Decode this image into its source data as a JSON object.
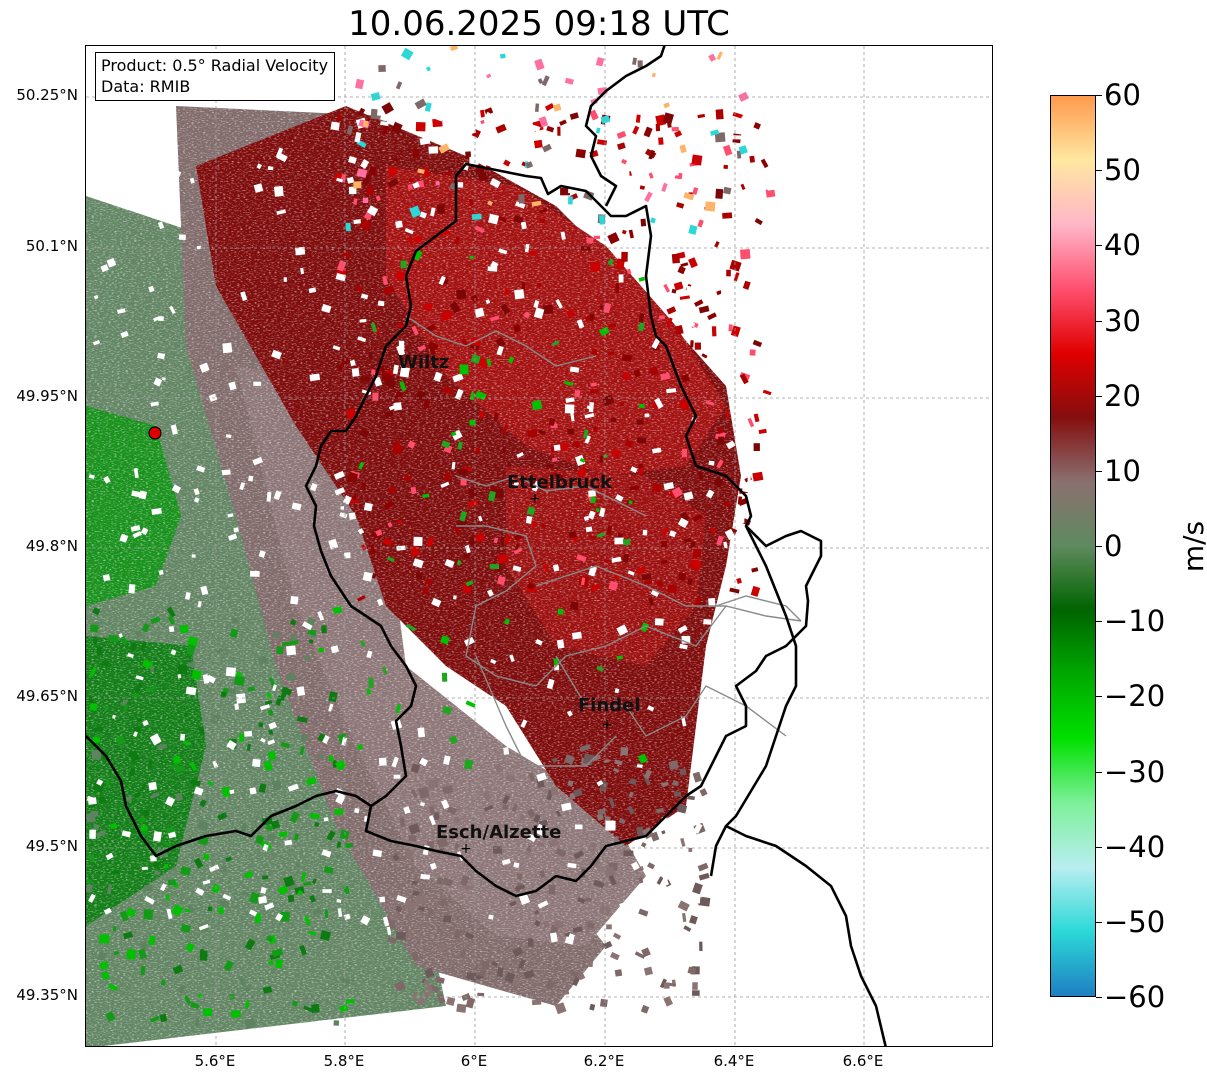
{
  "title": "10.06.2025 09:18 UTC",
  "info": {
    "product": "Product: 0.5° Radial Velocity",
    "data_source": "Data: RMIB"
  },
  "axes": {
    "lat_ticks": [
      "50.25°N",
      "50.1°N",
      "49.95°N",
      "49.8°N",
      "49.65°N",
      "49.5°N",
      "49.35°N"
    ],
    "lon_ticks": [
      "5.6°E",
      "5.8°E",
      "6°E",
      "6.2°E",
      "6.4°E",
      "6.6°E"
    ]
  },
  "cities": [
    "Wiltz",
    "Ettelbruck",
    "Findel",
    "Esch/Alzette"
  ],
  "colorbar": {
    "label": "m/s",
    "ticks": [
      "60",
      "50",
      "40",
      "30",
      "20",
      "10",
      "0",
      "−10",
      "−20",
      "−30",
      "−40",
      "−50",
      "−60"
    ],
    "range": [
      -60,
      60
    ],
    "colors": [
      "#1f7fc2",
      "#2bd8d8",
      "#b8eef0",
      "#7ef09a",
      "#00e000",
      "#00a800",
      "#006400",
      "#5f8a5f",
      "#8a7070",
      "#850e0e",
      "#e00000",
      "#ff5070",
      "#ffb6c8",
      "#ffe7a0",
      "#ff9a4e"
    ]
  },
  "radar_site_color": "#e00000"
}
